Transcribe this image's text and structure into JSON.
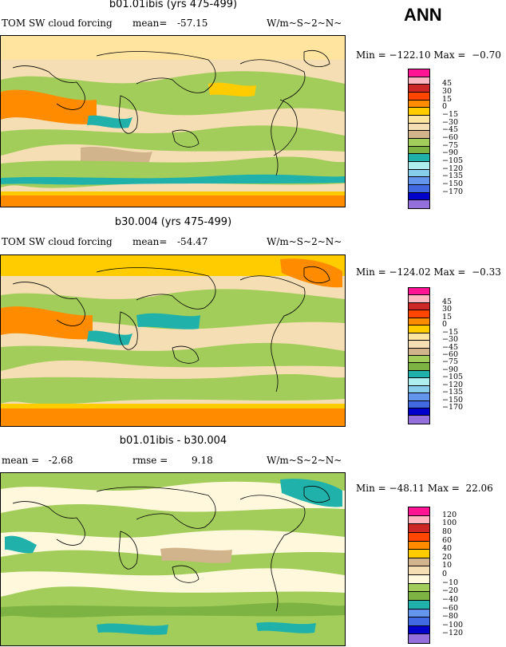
{
  "season": "ANN",
  "units_label": "W/m~S~2~N~",
  "panels": [
    {
      "title": "b01.01ibis (yrs 475-499)",
      "left_label": "TOM SW cloud forcing",
      "stat_label": "mean=",
      "stat_value": "-57.15",
      "minmax": "Min = −122.10 Max =  −0.70",
      "levels": [
        "45",
        "30",
        "15",
        "0",
        "−15",
        "−30",
        "−45",
        "−60",
        "−75",
        "−90",
        "−105",
        "−120",
        "−135",
        "−150",
        "−170"
      ],
      "colors": [
        "#ff1493",
        "#ffb6c1",
        "#cd2626",
        "#ff4500",
        "#ff8c00",
        "#ffcc00",
        "#ffe4a0",
        "#f5deb3",
        "#d2b48c",
        "#a2cd5a",
        "#7cb342",
        "#20b2aa",
        "#afeeee",
        "#87ceeb",
        "#6495ed",
        "#4169e1",
        "#0000cd",
        "#9370db"
      ]
    },
    {
      "title": "b30.004 (yrs 475-499)",
      "left_label": "TOM SW cloud forcing",
      "stat_label": "mean=",
      "stat_value": "-54.47",
      "minmax": "Min = −124.02 Max =  −0.33",
      "levels": [
        "45",
        "30",
        "15",
        "0",
        "−15",
        "−30",
        "−45",
        "−60",
        "−75",
        "−90",
        "−105",
        "−120",
        "−135",
        "−150",
        "−170"
      ],
      "colors": [
        "#ff1493",
        "#ffb6c1",
        "#cd2626",
        "#ff4500",
        "#ff8c00",
        "#ffcc00",
        "#ffe4a0",
        "#f5deb3",
        "#d2b48c",
        "#a2cd5a",
        "#7cb342",
        "#20b2aa",
        "#afeeee",
        "#87ceeb",
        "#6495ed",
        "#4169e1",
        "#0000cd",
        "#9370db"
      ]
    },
    {
      "title": "b01.01ibis - b30.004",
      "left_label": "mean =   -2.68",
      "stat_label": "rmse =",
      "stat_value": "9.18",
      "minmax": "Min = −48.11 Max =  22.06",
      "levels": [
        "120",
        "100",
        "80",
        "60",
        "40",
        "20",
        "10",
        "0",
        "−10",
        "−20",
        "−40",
        "−60",
        "−80",
        "−100",
        "−120"
      ],
      "colors": [
        "#ff1493",
        "#ffb6c1",
        "#cd2626",
        "#ff4500",
        "#ff8c00",
        "#ffcc00",
        "#d2b48c",
        "#f5deb3",
        "#fff8dc",
        "#a2cd5a",
        "#7cb342",
        "#20b2aa",
        "#6495ed",
        "#4169e1",
        "#0000cd",
        "#9370db"
      ]
    }
  ]
}
